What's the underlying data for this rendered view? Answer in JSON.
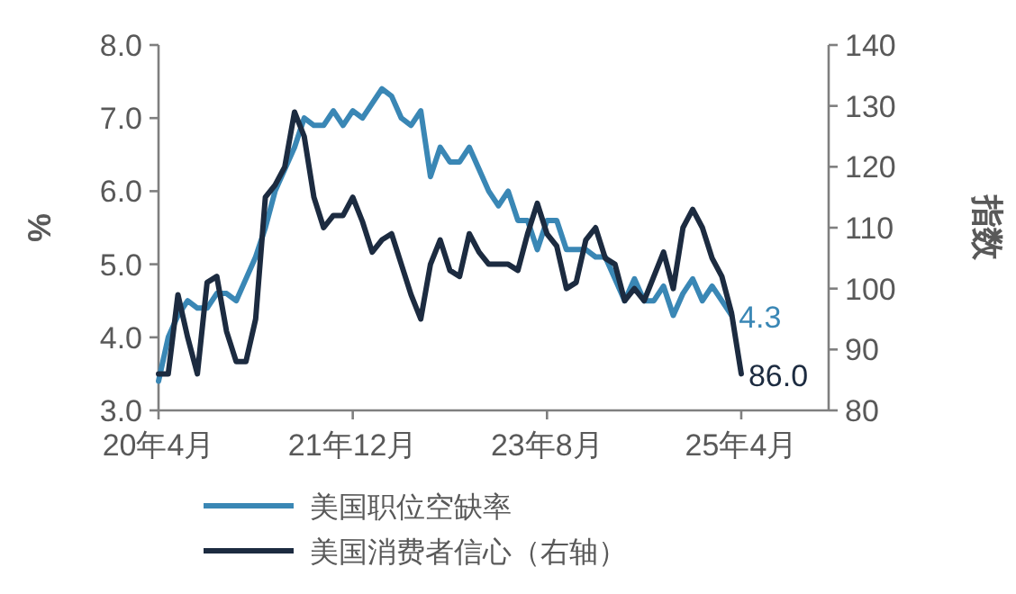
{
  "chart_data": {
    "type": "line",
    "ylabel": "%",
    "y2label": "指数",
    "categories": [
      "20年4月",
      null,
      null,
      null,
      null,
      null,
      null,
      null,
      null,
      null,
      null,
      null,
      null,
      null,
      null,
      null,
      null,
      null,
      null,
      null,
      "21年12月",
      null,
      null,
      null,
      null,
      null,
      null,
      null,
      null,
      null,
      null,
      null,
      null,
      null,
      null,
      null,
      null,
      null,
      null,
      null,
      "23年8月",
      null,
      null,
      null,
      null,
      null,
      null,
      null,
      null,
      null,
      null,
      null,
      null,
      null,
      null,
      null,
      null,
      null,
      null,
      null,
      "25年4月",
      null,
      null,
      null,
      null,
      null,
      null,
      null,
      null,
      null
    ],
    "series": [
      {
        "name": "美国职位空缺率",
        "color": "#3a87b5",
        "values": [
          3.4,
          4.0,
          4.3,
          4.5,
          4.4,
          4.4,
          4.6,
          4.6,
          4.5,
          4.8,
          5.1,
          5.5,
          6.0,
          6.3,
          6.6,
          7.0,
          6.9,
          6.9,
          7.1,
          6.9,
          7.1,
          7.0,
          7.2,
          7.4,
          7.3,
          7.0,
          6.9,
          7.1,
          6.2,
          6.6,
          6.4,
          6.4,
          6.6,
          6.3,
          6.0,
          5.8,
          6.0,
          5.6,
          5.6,
          5.2,
          5.6,
          5.6,
          5.2,
          5.2,
          5.2,
          5.1,
          5.1,
          4.8,
          4.5,
          4.8,
          4.5,
          4.5,
          4.7,
          4.3,
          4.6,
          4.8,
          4.5,
          4.7,
          4.5,
          4.3,
          null,
          null,
          null,
          null,
          null,
          null,
          null,
          null,
          null,
          null
        ],
        "value_labels": [
          null,
          null,
          null,
          null,
          null,
          null,
          null,
          null,
          null,
          null,
          null,
          null,
          null,
          null,
          null,
          null,
          null,
          null,
          null,
          null,
          null,
          null,
          null,
          null,
          null,
          null,
          null,
          null,
          null,
          null,
          null,
          null,
          null,
          null,
          null,
          null,
          null,
          null,
          null,
          null,
          null,
          null,
          null,
          null,
          null,
          null,
          null,
          null,
          null,
          null,
          null,
          null,
          null,
          null,
          null,
          null,
          null,
          null,
          null,
          "4.3",
          null,
          null,
          null,
          null,
          null,
          null,
          null,
          null,
          null,
          null
        ]
      },
      {
        "name": "美国消费者信心（右轴）",
        "color": "#1c2b40",
        "axis": "y2",
        "values": [
          86,
          86,
          99,
          92,
          86,
          101,
          102,
          93,
          88,
          88,
          95,
          115,
          117,
          120,
          129,
          125,
          115,
          110,
          112,
          112,
          115,
          111,
          106,
          108,
          109,
          104,
          99,
          95,
          104,
          108,
          103,
          102,
          109,
          106,
          104,
          104,
          104,
          103,
          109,
          114,
          109,
          107,
          100,
          101,
          108,
          110,
          105,
          104,
          98,
          100,
          98,
          102,
          106,
          100,
          110,
          113,
          110,
          105,
          102,
          96,
          86.0,
          null,
          null,
          null,
          null,
          null,
          null,
          null,
          null,
          null
        ],
        "value_labels": [
          null,
          null,
          null,
          null,
          null,
          null,
          null,
          null,
          null,
          null,
          null,
          null,
          null,
          null,
          null,
          null,
          null,
          null,
          null,
          null,
          null,
          null,
          null,
          null,
          null,
          null,
          null,
          null,
          null,
          null,
          null,
          null,
          null,
          null,
          null,
          null,
          null,
          null,
          null,
          null,
          null,
          null,
          null,
          null,
          null,
          null,
          null,
          null,
          null,
          null,
          null,
          null,
          null,
          null,
          null,
          null,
          null,
          null,
          null,
          null,
          "86.0",
          null,
          null,
          null,
          null,
          null,
          null,
          null,
          null,
          null
        ]
      }
    ],
    "ylim": [
      3,
      8
    ],
    "yticks": [
      {
        "value": 3,
        "label": "3.0"
      },
      {
        "value": 4,
        "label": "4.0"
      },
      {
        "value": 5,
        "label": "5.0"
      },
      {
        "value": 6,
        "label": "6.0"
      },
      {
        "value": 7,
        "label": "7.0"
      },
      {
        "value": 8,
        "label": "8.0"
      }
    ],
    "y2lim": [
      80,
      140
    ],
    "y2ticks": [
      80,
      90,
      100,
      110,
      120,
      130,
      140
    ],
    "legend": "bottom",
    "line_style": "solid"
  }
}
